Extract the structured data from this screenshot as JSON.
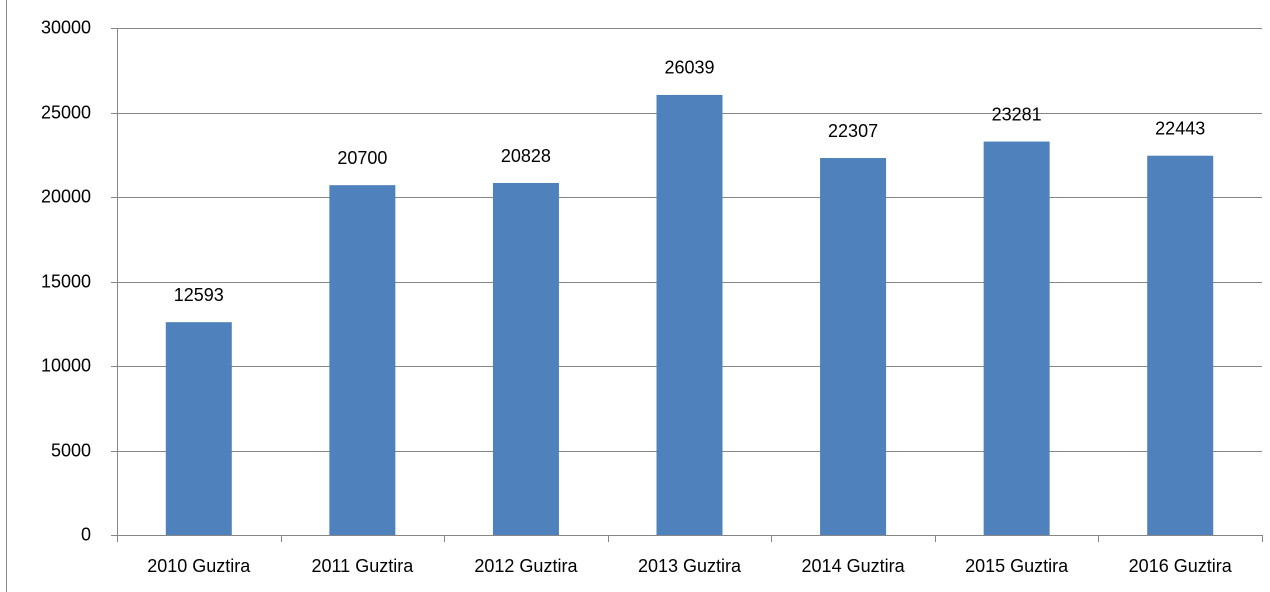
{
  "chart_data": {
    "type": "bar",
    "categories": [
      "2010 Guztira",
      "2011 Guztira",
      "2012 Guztira",
      "2013 Guztira",
      "2014 Guztira",
      "2015 Guztira",
      "2016 Guztira"
    ],
    "values": [
      12593,
      20700,
      20828,
      26039,
      22307,
      23281,
      22443
    ],
    "color": "#4f81bd",
    "ylim": [
      0,
      30000
    ],
    "yticks": [
      0,
      5000,
      10000,
      15000,
      20000,
      25000,
      30000
    ],
    "grid": true
  }
}
